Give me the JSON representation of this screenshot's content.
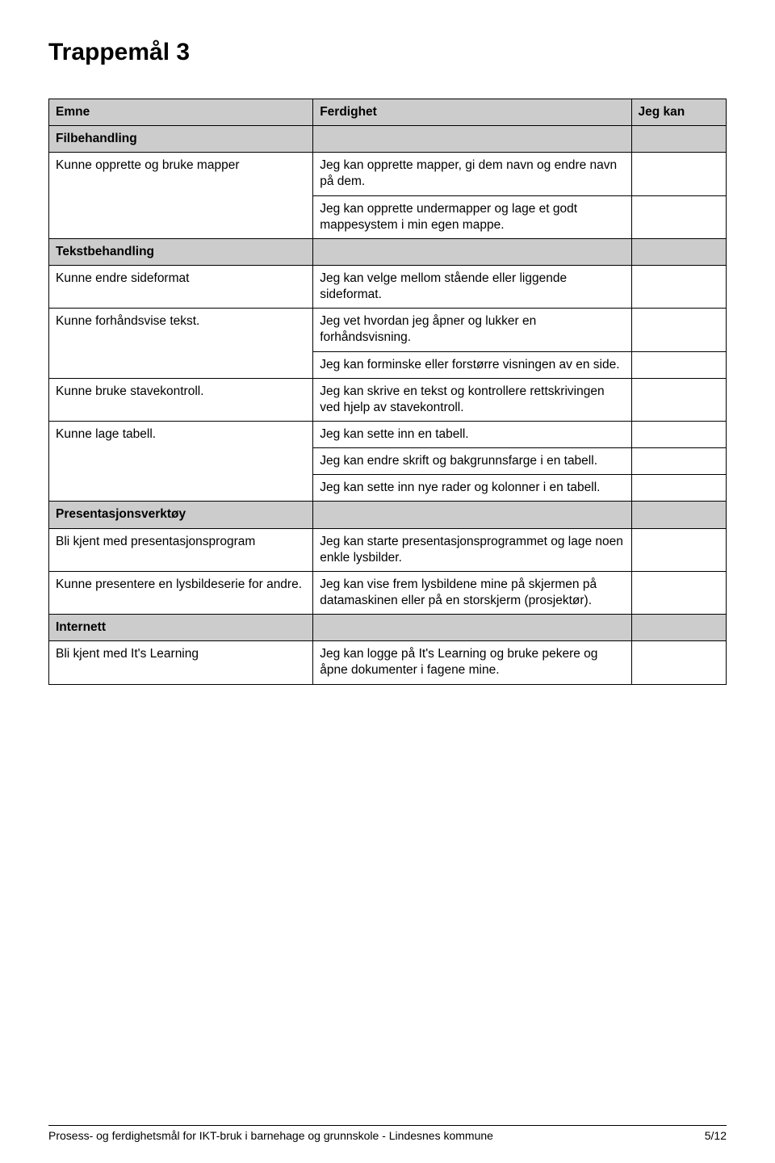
{
  "title": "Trappemål 3",
  "columns": {
    "c1": "Emne",
    "c2": "Ferdighet",
    "c3": "Jeg kan"
  },
  "sections": {
    "filbehandling": "Filbehandling",
    "tekstbehandling": "Tekstbehandling",
    "presentasjon": "Presentasjonsverktøy",
    "internett": "Internett"
  },
  "rows": {
    "r1a": "Kunne opprette og bruke mapper",
    "r1b": "Jeg kan opprette mapper, gi dem navn og endre navn på dem.",
    "r1c": "Jeg kan opprette undermapper og lage et godt mappesystem i min egen mappe.",
    "r2a": "Kunne endre sideformat",
    "r2b": "Jeg kan velge mellom stående eller liggende sideformat.",
    "r3a": "Kunne forhåndsvise tekst.",
    "r3b": "Jeg vet hvordan jeg åpner og lukker en forhåndsvisning.",
    "r3c": "Jeg kan forminske eller forstørre visningen av en side.",
    "r4a": "Kunne bruke stavekontroll.",
    "r4b": "Jeg kan skrive en tekst og kontrollere rettskrivingen ved hjelp av stavekontroll.",
    "r5a": "Kunne lage tabell.",
    "r5b": "Jeg kan sette inn en tabell.",
    "r5c": "Jeg kan endre skrift og bakgrunnsfarge i en tabell.",
    "r5d": "Jeg kan sette inn nye rader og kolonner i en tabell.",
    "r6a": "Bli kjent med presentasjonsprogram",
    "r6b": "Jeg kan starte presentasjonsprogrammet og lage noen enkle lysbilder.",
    "r7a": "Kunne presentere en lysbildeserie for andre.",
    "r7b": "Jeg kan vise frem lysbildene mine på skjermen på datamaskinen eller på en storskjerm (prosjektør).",
    "r8a": "Bli kjent med It's Learning",
    "r8b": "Jeg kan logge på It's Learning og bruke pekere og åpne dokumenter i fagene mine."
  },
  "footer": {
    "left": "Prosess- og ferdighetsmål for IKT-bruk i barnehage og grunnskole - Lindesnes kommune",
    "right": "5/12"
  }
}
